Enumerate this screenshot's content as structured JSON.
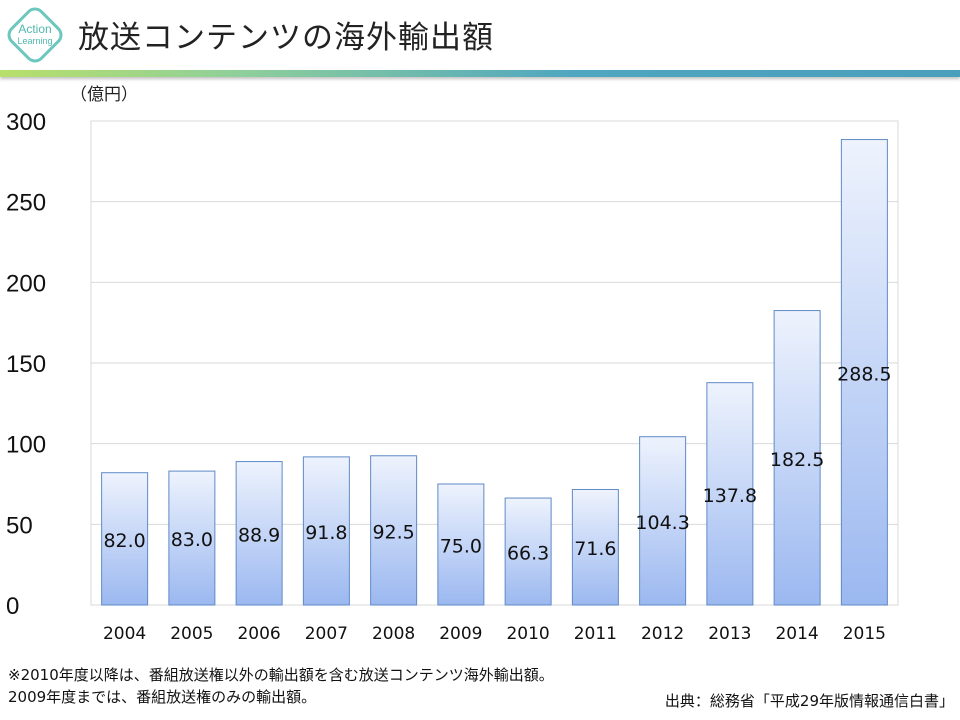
{
  "header": {
    "title": "放送コンテンツの海外輸出額",
    "logo_text": "Action Learning"
  },
  "chart_data": {
    "type": "bar",
    "title": "",
    "ylabel": "（億円）",
    "xlabel": "",
    "categories": [
      "2004",
      "2005",
      "2006",
      "2007",
      "2008",
      "2009",
      "2010",
      "2011",
      "2012",
      "2013",
      "2014",
      "2015"
    ],
    "values": [
      82.0,
      83.0,
      88.9,
      91.8,
      92.5,
      75.0,
      66.3,
      71.6,
      104.3,
      137.8,
      182.5,
      288.5
    ],
    "data_labels": [
      "82.0",
      "83.0",
      "88.9",
      "91.8",
      "92.5",
      "75.0",
      "66.3",
      "71.6",
      "104.3",
      "137.8",
      "182.5",
      "288.5"
    ],
    "ylim": [
      0,
      300
    ],
    "yticks": [
      "0",
      "50",
      "100",
      "150",
      "200",
      "250",
      "300"
    ],
    "grid": true,
    "bar_color_top": "#eef3fd",
    "bar_color_bottom": "#9bb8f0",
    "bar_border": "#5f8ac6"
  },
  "footnotes": {
    "note1": "※2010年度以降は、番組放送権以外の輸出額を含む放送コンテンツ海外輸出額。",
    "note2": "2009年度までは、番組放送権のみの輸出額。",
    "source": "出典：総務省「平成29年版情報通信白書」"
  }
}
